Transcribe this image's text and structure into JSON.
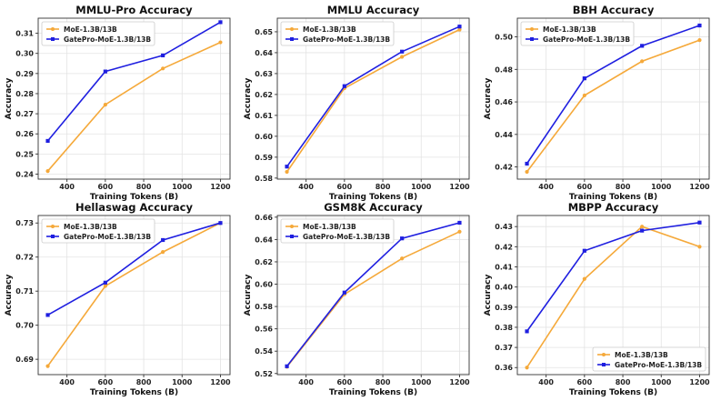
{
  "figure": {
    "layout": "2x3 grid of line charts"
  },
  "colors": {
    "moe": "#f5a93a",
    "gatepro": "#1f1fe0"
  },
  "chart_data": [
    {
      "type": "line",
      "title": "MMLU-Pro Accuracy",
      "xlabel": "Training Tokens (B)",
      "ylabel": "Accuracy",
      "x": [
        300,
        600,
        900,
        1200
      ],
      "xlim": [
        250,
        1250
      ],
      "xticks": [
        400,
        600,
        800,
        1000,
        1200
      ],
      "ylim": [
        0.2375,
        0.3175
      ],
      "yticks": [
        0.24,
        0.25,
        0.26,
        0.27,
        0.28,
        0.29,
        0.3,
        0.31
      ],
      "ytick_labels": [
        "0.24",
        "0.25",
        "0.26",
        "0.27",
        "0.28",
        "0.29",
        "0.30",
        "0.31"
      ],
      "legend_position": "top-left",
      "series": [
        {
          "name": "MoE-1.3B/13B",
          "values": [
            0.2415,
            0.2745,
            0.2925,
            0.3055
          ]
        },
        {
          "name": "GatePro-MoE-1.3B/13B",
          "values": [
            0.2565,
            0.291,
            0.299,
            0.3155
          ]
        }
      ]
    },
    {
      "type": "line",
      "title": "MMLU Accuracy",
      "xlabel": "Training Tokens (B)",
      "ylabel": "Accuracy",
      "x": [
        300,
        600,
        900,
        1200
      ],
      "xlim": [
        250,
        1250
      ],
      "xticks": [
        400,
        600,
        800,
        1000,
        1200
      ],
      "ylim": [
        0.5795,
        0.6565
      ],
      "yticks": [
        0.58,
        0.59,
        0.6,
        0.61,
        0.62,
        0.63,
        0.64,
        0.65
      ],
      "ytick_labels": [
        "0.58",
        "0.59",
        "0.60",
        "0.61",
        "0.62",
        "0.63",
        "0.64",
        "0.65"
      ],
      "legend_position": "top-left",
      "series": [
        {
          "name": "MoE-1.3B/13B",
          "values": [
            0.583,
            0.623,
            0.638,
            0.651
          ]
        },
        {
          "name": "GatePro-MoE-1.3B/13B",
          "values": [
            0.5855,
            0.624,
            0.6405,
            0.6525
          ]
        }
      ]
    },
    {
      "type": "line",
      "title": "BBH Accuracy",
      "xlabel": "Training Tokens (B)",
      "ylabel": "Accuracy",
      "x": [
        300,
        600,
        900,
        1200
      ],
      "xlim": [
        250,
        1250
      ],
      "xticks": [
        400,
        600,
        800,
        1000,
        1200
      ],
      "ylim": [
        0.4125,
        0.5115
      ],
      "yticks": [
        0.42,
        0.44,
        0.46,
        0.48,
        0.5
      ],
      "ytick_labels": [
        "0.42",
        "0.44",
        "0.46",
        "0.48",
        "0.50"
      ],
      "legend_position": "top-left",
      "series": [
        {
          "name": "MoE-1.3B/13B",
          "values": [
            0.417,
            0.464,
            0.485,
            0.498
          ]
        },
        {
          "name": "GatePro-MoE-1.3B/13B",
          "values": [
            0.422,
            0.4745,
            0.4945,
            0.507
          ]
        }
      ]
    },
    {
      "type": "line",
      "title": "Hellaswag Accuracy",
      "xlabel": "Training Tokens (B)",
      "ylabel": "Accuracy",
      "x": [
        300,
        600,
        900,
        1200
      ],
      "xlim": [
        250,
        1250
      ],
      "xticks": [
        400,
        600,
        800,
        1000,
        1200
      ],
      "ylim": [
        0.6855,
        0.7322
      ],
      "yticks": [
        0.69,
        0.7,
        0.71,
        0.72,
        0.73
      ],
      "ytick_labels": [
        "0.69",
        "0.70",
        "0.71",
        "0.72",
        "0.73"
      ],
      "legend_position": "top-left",
      "series": [
        {
          "name": "MoE-1.3B/13B",
          "values": [
            0.688,
            0.7115,
            0.7215,
            0.73
          ]
        },
        {
          "name": "GatePro-MoE-1.3B/13B",
          "values": [
            0.703,
            0.7125,
            0.725,
            0.73
          ]
        }
      ]
    },
    {
      "type": "line",
      "title": "GSM8K Accuracy",
      "xlabel": "Training Tokens (B)",
      "ylabel": "Accuracy",
      "x": [
        300,
        600,
        900,
        1200
      ],
      "xlim": [
        250,
        1250
      ],
      "xticks": [
        400,
        600,
        800,
        1000,
        1200
      ],
      "ylim": [
        0.519,
        0.6615
      ],
      "yticks": [
        0.52,
        0.54,
        0.56,
        0.58,
        0.6,
        0.62,
        0.64,
        0.66
      ],
      "ytick_labels": [
        "0.52",
        "0.54",
        "0.56",
        "0.58",
        "0.60",
        "0.62",
        "0.64",
        "0.66"
      ],
      "legend_position": "top-left",
      "series": [
        {
          "name": "MoE-1.3B/13B",
          "values": [
            0.526,
            0.591,
            0.623,
            0.647
          ]
        },
        {
          "name": "GatePro-MoE-1.3B/13B",
          "values": [
            0.5265,
            0.5925,
            0.641,
            0.655
          ]
        }
      ]
    },
    {
      "type": "line",
      "title": "MBPP Accuracy",
      "xlabel": "Training Tokens (B)",
      "ylabel": "Accuracy",
      "x": [
        300,
        600,
        900,
        1200
      ],
      "xlim": [
        250,
        1250
      ],
      "xticks": [
        400,
        600,
        800,
        1000,
        1200
      ],
      "ylim": [
        0.3565,
        0.4355
      ],
      "yticks": [
        0.36,
        0.37,
        0.38,
        0.39,
        0.4,
        0.41,
        0.42,
        0.43
      ],
      "ytick_labels": [
        "0.36",
        "0.37",
        "0.38",
        "0.39",
        "0.40",
        "0.41",
        "0.42",
        "0.43"
      ],
      "legend_position": "bottom-right",
      "series": [
        {
          "name": "MoE-1.3B/13B",
          "values": [
            0.36,
            0.404,
            0.43,
            0.42
          ]
        },
        {
          "name": "GatePro-MoE-1.3B/13B",
          "values": [
            0.378,
            0.418,
            0.428,
            0.432
          ]
        }
      ]
    }
  ]
}
